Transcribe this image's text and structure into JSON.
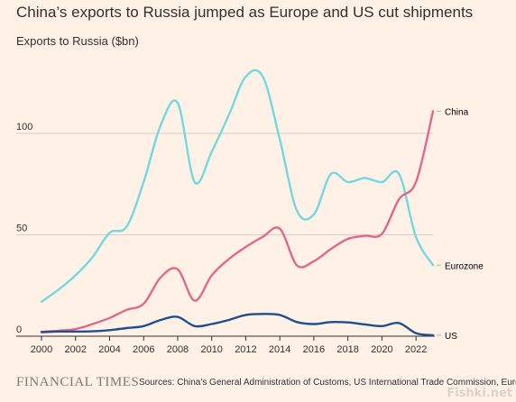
{
  "title": "China’s exports to Russia jumped as Europe and US cut shipments",
  "subtitle": "Exports to Russia ($bn)",
  "footer": {
    "publisher": "FINANCIAL TIMES",
    "source": "Sources: China's General Administration of Customs, US International Trade Commission, Eurostat"
  },
  "watermark": "Fishki.net",
  "chart_data": {
    "type": "line",
    "title": "China’s exports to Russia jumped as Europe and US cut shipments",
    "ylabel": "Exports to Russia ($bn)",
    "xlim": [
      2000,
      2023
    ],
    "ylim": [
      0,
      130
    ],
    "grid": true,
    "x_ticks": [
      "2000",
      "2002",
      "2004",
      "2006",
      "2008",
      "2010",
      "2012",
      "2014",
      "2016",
      "2018",
      "2020",
      "2022"
    ],
    "y_ticks": [
      "0",
      "50",
      "100"
    ],
    "series": [
      {
        "name": "China",
        "color": "#e0698b",
        "x": [
          2000,
          2001,
          2002,
          2003,
          2004,
          2005,
          2006,
          2007,
          2008,
          2009,
          2010,
          2011,
          2012,
          2013,
          2014,
          2015,
          2016,
          2017,
          2018,
          2019,
          2020,
          2021,
          2022,
          2023
        ],
        "values": [
          2.2,
          2.7,
          3.5,
          6,
          9,
          13,
          16,
          29,
          33,
          17.5,
          30,
          38,
          44,
          49,
          53,
          35,
          37,
          43,
          48,
          49.5,
          50.5,
          67.5,
          76,
          111
        ]
      },
      {
        "name": "Eurozone",
        "color": "#71d9e2",
        "x": [
          2000,
          2001,
          2002,
          2003,
          2004,
          2005,
          2006,
          2007,
          2008,
          2009,
          2010,
          2011,
          2012,
          2013,
          2014,
          2015,
          2016,
          2017,
          2018,
          2019,
          2020,
          2021,
          2022,
          2023
        ],
        "values": [
          17,
          23,
          30,
          39,
          51,
          54,
          76,
          104,
          115,
          76,
          91,
          109,
          128,
          128,
          97,
          62,
          60,
          80,
          76,
          78,
          76,
          80,
          49,
          35
        ]
      },
      {
        "name": "US",
        "color": "#1d5091",
        "x": [
          2000,
          2001,
          2002,
          2003,
          2004,
          2005,
          2006,
          2007,
          2008,
          2009,
          2010,
          2011,
          2012,
          2013,
          2014,
          2015,
          2016,
          2017,
          2018,
          2019,
          2020,
          2021,
          2022,
          2023
        ],
        "values": [
          2,
          2.3,
          2.3,
          2.4,
          3,
          4,
          5,
          8,
          9.5,
          5,
          6,
          8,
          10.5,
          11,
          10.5,
          7,
          6,
          7,
          6.8,
          5.8,
          5,
          6.5,
          1.5,
          0.5
        ]
      }
    ]
  }
}
